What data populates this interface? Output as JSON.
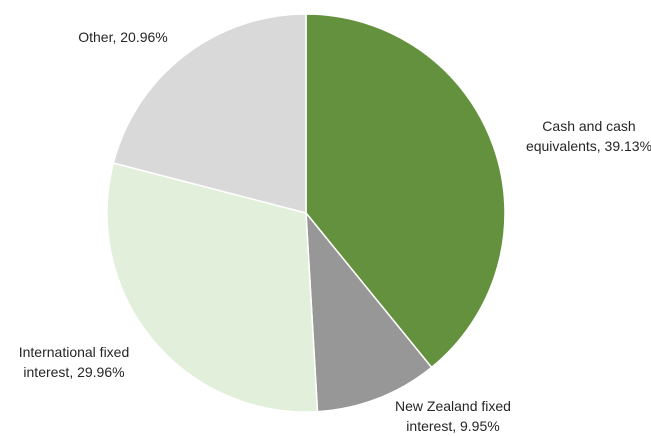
{
  "chart_data": {
    "type": "pie",
    "title": "",
    "slices": [
      {
        "label": "Cash and cash equivalents",
        "value": 39.13,
        "label_lines": [
          "Cash and cash",
          "equivalents, 39.13%"
        ],
        "color": "#63913d"
      },
      {
        "label": "New Zealand fixed interest",
        "value": 9.95,
        "label_lines": [
          "New Zealand fixed",
          "interest, 9.95%"
        ],
        "color": "#979797"
      },
      {
        "label": "International fixed interest",
        "value": 29.96,
        "label_lines": [
          "International fixed",
          "interest, 29.96%"
        ],
        "color": "#e2efda"
      },
      {
        "label": "Other",
        "value": 20.96,
        "label_lines": [
          "Other, 20.96%"
        ],
        "color": "#d9d9d9"
      }
    ],
    "start_angle": "12 o'clock",
    "direction": "clockwise",
    "legend": "none",
    "slice_border": "#ffffff"
  }
}
